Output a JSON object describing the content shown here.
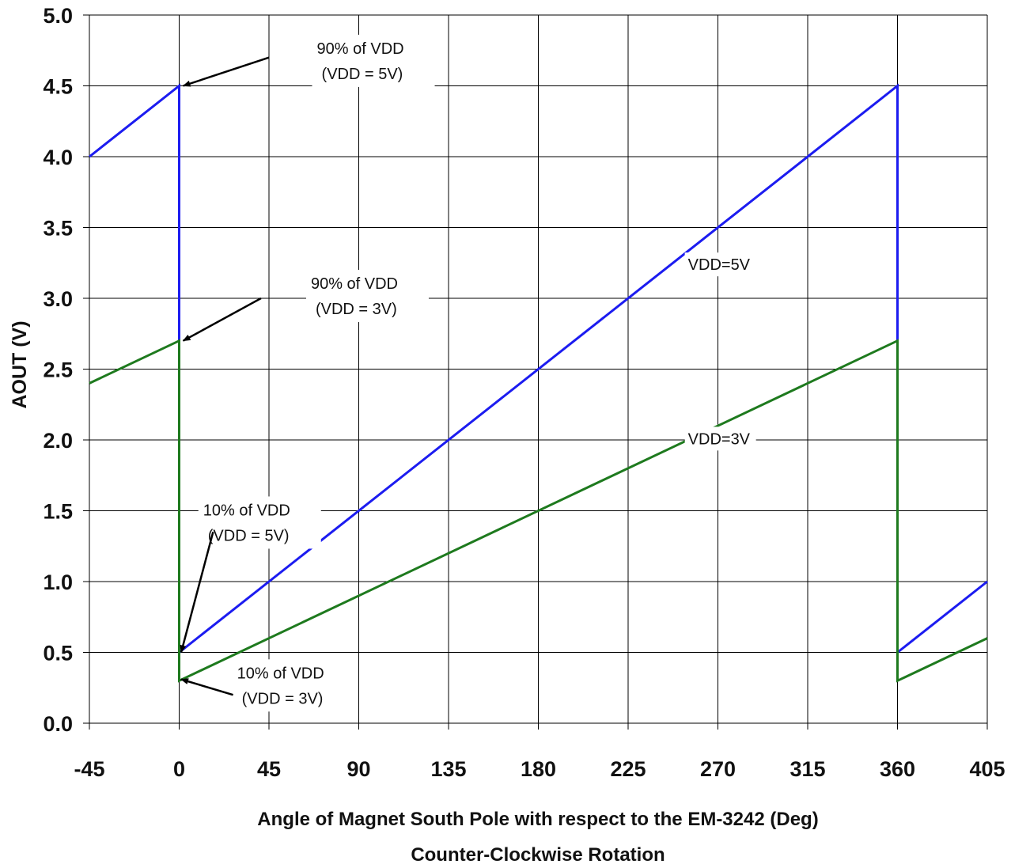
{
  "chart_data": {
    "type": "line",
    "title": "",
    "xlabel": "Angle of Magnet South Pole with respect to the EM-3242  (Deg)",
    "xlabel2": "Counter-Clockwise Rotation",
    "ylabel": "AOUT (V)",
    "xlim": [
      -45,
      405
    ],
    "ylim": [
      0.0,
      5.0
    ],
    "x_ticks": [
      "-45",
      "0",
      "45",
      "90",
      "135",
      "180",
      "225",
      "270",
      "315",
      "360",
      "405"
    ],
    "x_tick_values": [
      -45,
      0,
      45,
      90,
      135,
      180,
      225,
      270,
      315,
      360,
      405
    ],
    "y_ticks": [
      "0.0",
      "0.5",
      "1.0",
      "1.5",
      "2.0",
      "2.5",
      "3.0",
      "3.5",
      "4.0",
      "4.5",
      "5.0"
    ],
    "y_tick_values": [
      0.0,
      0.5,
      1.0,
      1.5,
      2.0,
      2.5,
      3.0,
      3.5,
      4.0,
      4.5,
      5.0
    ],
    "grid": true,
    "series": [
      {
        "name": "VDD=5V",
        "color": "#1c1cf0",
        "x": [
          -45,
          0,
          0,
          360,
          360,
          405
        ],
        "y": [
          4.0,
          4.5,
          0.5,
          4.5,
          0.5,
          1.0
        ]
      },
      {
        "name": "VDD=3V",
        "color": "#1e7a1e",
        "x": [
          -45,
          0,
          0,
          360,
          360,
          405
        ],
        "y": [
          2.4,
          2.7,
          0.3,
          2.7,
          0.3,
          0.6
        ]
      }
    ],
    "series_labels": [
      {
        "text": "VDD=5V",
        "x": 255,
        "y": 3.2
      },
      {
        "text": "VDD=3V",
        "x": 255,
        "y": 1.97
      }
    ],
    "annotations": [
      {
        "line1": "90% of VDD",
        "line2": "(VDD = 5V)",
        "text_x": 69,
        "text_y": 4.71,
        "arrow_from": [
          45,
          4.7
        ],
        "arrow_to": [
          2,
          4.5
        ]
      },
      {
        "line1": "90% of VDD",
        "line2": "(VDD = 3V)",
        "text_x": 66,
        "text_y": 3.05,
        "arrow_from": [
          41,
          3.0
        ],
        "arrow_to": [
          2,
          2.7
        ]
      },
      {
        "line1": "10% of VDD",
        "line2": "(VDD = 5V)",
        "text_x": 12,
        "text_y": 1.45,
        "arrow_from": [
          17,
          1.35
        ],
        "arrow_to": [
          1,
          0.5
        ]
      },
      {
        "line1": "10% of VDD",
        "line2": "(VDD = 3V)",
        "text_x": 29,
        "text_y": 0.3,
        "arrow_from": [
          27,
          0.2
        ],
        "arrow_to": [
          1,
          0.31
        ]
      }
    ]
  }
}
